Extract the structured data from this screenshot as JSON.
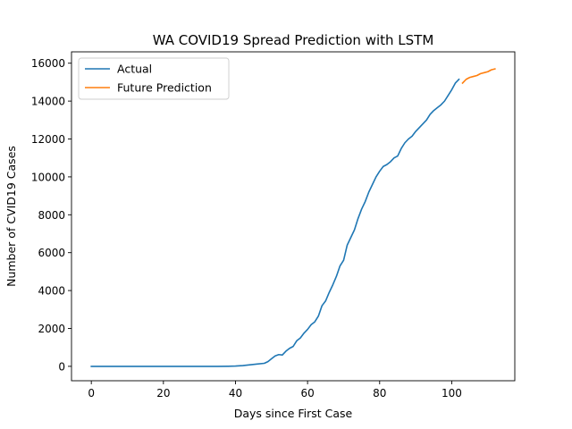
{
  "chart_data": {
    "type": "line",
    "title": "WA COVID19 Spread Prediction with LSTM",
    "xlabel": "Days since First Case",
    "ylabel": "Number of CVID19 Cases",
    "xlim": [
      -5.5,
      117.5
    ],
    "ylim": [
      -760,
      16600
    ],
    "xticks": [
      0,
      20,
      40,
      60,
      80,
      100
    ],
    "yticks": [
      0,
      2000,
      4000,
      6000,
      8000,
      10000,
      12000,
      14000,
      16000
    ],
    "grid": false,
    "legend_position": "top-left",
    "series": [
      {
        "name": "Actual",
        "color": "#1f77b4",
        "x": [
          0,
          5,
          10,
          15,
          20,
          25,
          30,
          35,
          38,
          40,
          42,
          44,
          46,
          48,
          49,
          50,
          51,
          52,
          53,
          54,
          55,
          56,
          57,
          58,
          59,
          60,
          61,
          62,
          63,
          64,
          65,
          66,
          67,
          68,
          69,
          70,
          71,
          72,
          73,
          74,
          75,
          76,
          77,
          78,
          79,
          80,
          81,
          82,
          83,
          84,
          85,
          86,
          87,
          88,
          89,
          90,
          91,
          92,
          93,
          94,
          95,
          96,
          97,
          98,
          99,
          100,
          101,
          102
        ],
        "y": [
          0,
          0,
          0,
          0,
          0,
          0,
          0,
          0,
          5,
          15,
          40,
          80,
          120,
          160,
          250,
          400,
          550,
          620,
          600,
          800,
          950,
          1050,
          1350,
          1500,
          1750,
          1950,
          2200,
          2350,
          2650,
          3200,
          3450,
          3900,
          4300,
          4750,
          5300,
          5600,
          6400,
          6800,
          7200,
          7800,
          8300,
          8700,
          9200,
          9600,
          10000,
          10300,
          10550,
          10650,
          10800,
          11000,
          11100,
          11500,
          11800,
          12000,
          12150,
          12400,
          12600,
          12800,
          13000,
          13300,
          13500,
          13650,
          13800,
          14000,
          14300,
          14600,
          14950,
          15150
        ]
      },
      {
        "name": "Future Prediction",
        "color": "#ff7f0e",
        "x": [
          103,
          104,
          105,
          106,
          107,
          108,
          109,
          110,
          111,
          112
        ],
        "y": [
          14950,
          15150,
          15250,
          15300,
          15350,
          15450,
          15500,
          15550,
          15650,
          15700
        ]
      }
    ]
  }
}
